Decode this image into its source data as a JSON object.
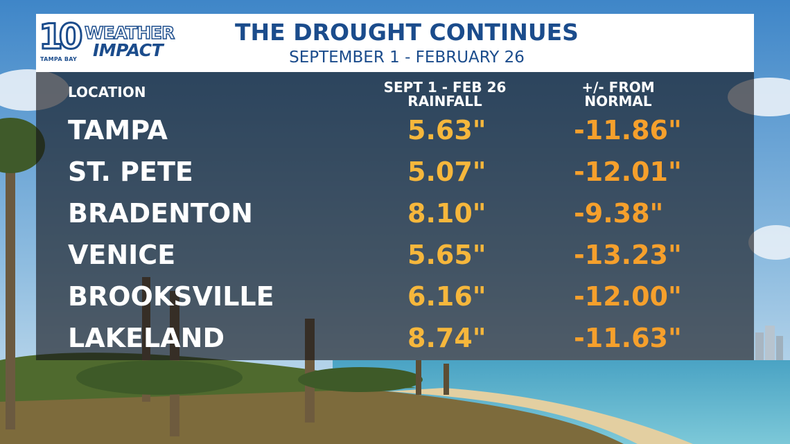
{
  "header": {
    "logo_number": "10",
    "logo_market": "TAMPA BAY",
    "logo_line1": "WEATHER",
    "logo_line2": "IMPACT",
    "title": "THE DROUGHT CONTINUES",
    "subtitle": "SEPTEMBER 1 - FEBRUARY 26"
  },
  "colors": {
    "brand_blue": "#1b4c8c",
    "rainfall": "#f6b73c",
    "deviation": "#f6a02c",
    "location": "#ffffff"
  },
  "chart_data": {
    "type": "table",
    "title": "THE DROUGHT CONTINUES",
    "subtitle": "SEPTEMBER 1 - FEBRUARY 26",
    "columns": [
      "LOCATION",
      "SEPT 1 - FEB 26\nRAINFALL",
      "+/- FROM\nNORMAL"
    ],
    "rows": [
      {
        "location": "TAMPA",
        "rainfall": "5.63\"",
        "departure": "-11.86\""
      },
      {
        "location": "ST. PETE",
        "rainfall": "5.07\"",
        "departure": "-12.01\""
      },
      {
        "location": "BRADENTON",
        "rainfall": "8.10\"",
        "departure": "-9.38\""
      },
      {
        "location": "VENICE",
        "rainfall": "5.65\"",
        "departure": "-13.23\""
      },
      {
        "location": "BROOKSVILLE",
        "rainfall": "6.16\"",
        "departure": "-12.00\""
      },
      {
        "location": "LAKELAND",
        "rainfall": "8.74\"",
        "departure": "-11.63\""
      }
    ]
  }
}
